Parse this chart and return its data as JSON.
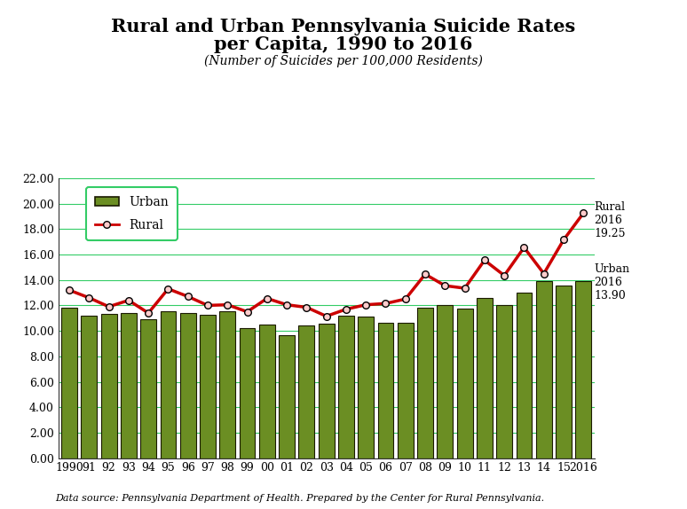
{
  "years": [
    1990,
    1991,
    1992,
    1993,
    1994,
    1995,
    1996,
    1997,
    1998,
    1999,
    2000,
    2001,
    2002,
    2003,
    2004,
    2005,
    2006,
    2007,
    2008,
    2009,
    2010,
    2011,
    2012,
    2013,
    2014,
    2015,
    2016
  ],
  "year_labels": [
    "1990",
    "91",
    "92",
    "93",
    "94",
    "95",
    "96",
    "97",
    "98",
    "99",
    "00",
    "01",
    "02",
    "03",
    "04",
    "05",
    "06",
    "07",
    "08",
    "09",
    "10",
    "11",
    "12",
    "13",
    "14",
    "15",
    "2016"
  ],
  "urban": [
    11.85,
    11.2,
    11.3,
    11.4,
    10.9,
    11.55,
    11.4,
    11.25,
    11.55,
    10.25,
    10.5,
    9.65,
    10.4,
    10.55,
    11.2,
    11.15,
    10.65,
    10.65,
    11.85,
    12.0,
    11.75,
    12.6,
    12.0,
    13.0,
    13.9,
    13.55,
    13.9
  ],
  "rural": [
    13.2,
    12.6,
    11.9,
    12.4,
    11.4,
    13.3,
    12.7,
    12.0,
    12.05,
    11.5,
    12.55,
    12.05,
    11.85,
    11.15,
    11.7,
    12.05,
    12.15,
    12.5,
    14.45,
    13.55,
    13.35,
    15.55,
    14.35,
    16.55,
    14.5,
    17.15,
    19.25
  ],
  "title_line1": "Rural and Urban Pennsylvania Suicide Rates",
  "title_line2": "per Capita, 1990 to 2016",
  "subtitle": "(Number of Suicides per 100,000 Residents)",
  "ylim": [
    0,
    22.0
  ],
  "yticks": [
    0.0,
    2.0,
    4.0,
    6.0,
    8.0,
    10.0,
    12.0,
    14.0,
    16.0,
    18.0,
    20.0,
    22.0
  ],
  "bar_color": "#6b8e23",
  "bar_edge_color": "#1a1a00",
  "line_color": "#cc0000",
  "grid_color": "#33cc66",
  "annotation_rural": "Rural\n2016\n19.25",
  "annotation_urban": "Urban\n2016\n13.90",
  "source_text": "Data source: Pennsylvania Department of Health. Prepared by the Center for Rural Pennsylvania.",
  "legend_box_color": "#33cc66",
  "background_color": "#ffffff",
  "title_fontsize": 15,
  "subtitle_fontsize": 10,
  "tick_fontsize": 9,
  "annotation_fontsize": 9
}
